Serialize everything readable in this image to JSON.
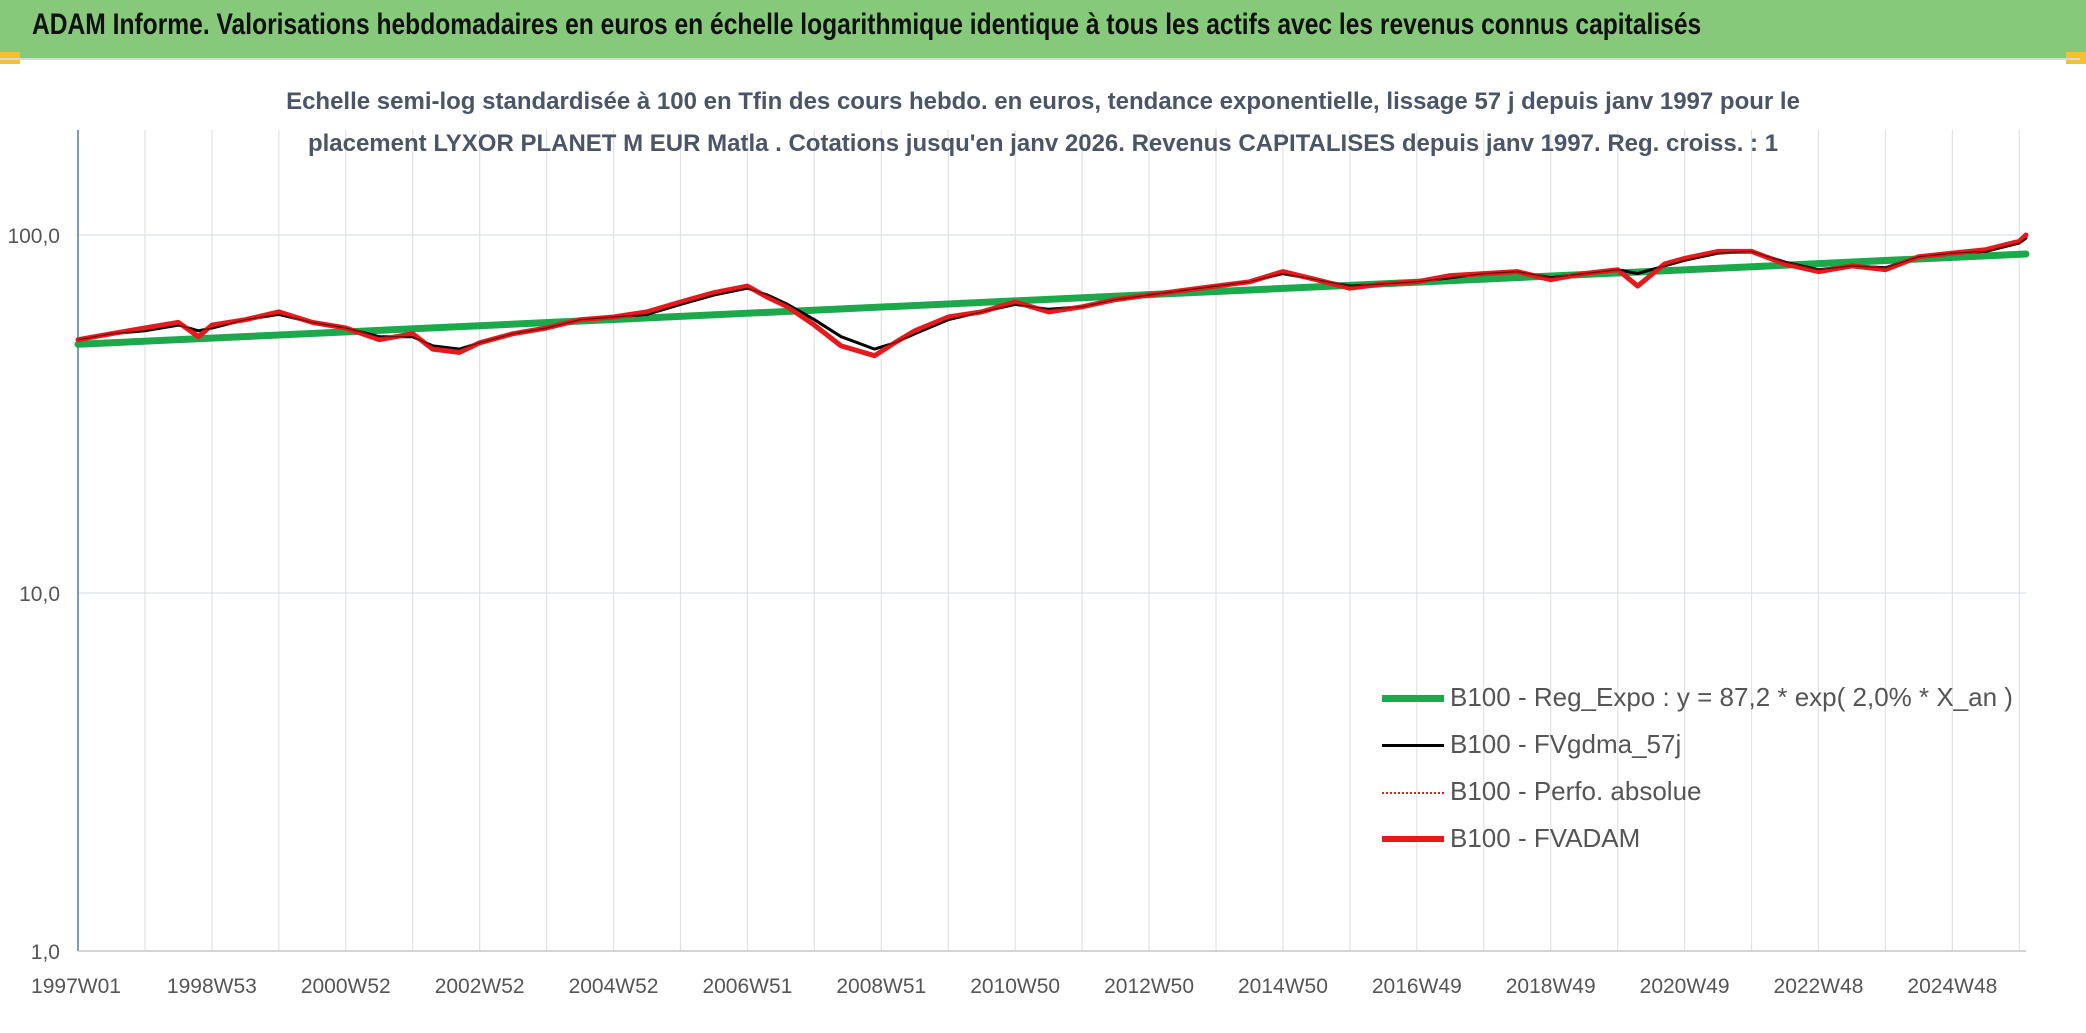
{
  "header": {
    "title": "ADAM Informe. Valorisations hebdomadaires en euros en échelle logarithmique identique à tous les actifs avec les revenus connus capitalisés"
  },
  "colors": {
    "header_bg": "#87C97A",
    "trend": "#1BA94C",
    "smoothed": "#000000",
    "absolute": "#E41A1C",
    "fvadam": "#E41A1C"
  },
  "chart_data": {
    "type": "line",
    "title_line1": "Echelle semi-log standardisée à 100 en Tfin des cours hebdo. en euros, tendance exponentielle, lissage 57 j depuis janv 1997 pour le",
    "title_line2": "placement LYXOR PLANET M EUR Matla . Cotations jusqu'en janv 2026. Revenus CAPITALISES depuis janv 1997. Reg. croiss. : 1",
    "y_scale": "log",
    "ylim": [
      1,
      200
    ],
    "y_ticks": [
      {
        "value": 1,
        "label": "1,0"
      },
      {
        "value": 10,
        "label": "10,0"
      },
      {
        "value": 100,
        "label": "100,0"
      }
    ],
    "xlim": [
      1997.0,
      2026.1
    ],
    "x_ticks": [
      {
        "x": 1997.0,
        "label": "1997W01"
      },
      {
        "x": 1999.0,
        "label": "1998W53"
      },
      {
        "x": 2001.0,
        "label": "2000W52"
      },
      {
        "x": 2003.0,
        "label": "2002W52"
      },
      {
        "x": 2005.0,
        "label": "2004W52"
      },
      {
        "x": 2007.0,
        "label": "2006W51"
      },
      {
        "x": 2009.0,
        "label": "2008W51"
      },
      {
        "x": 2011.0,
        "label": "2010W50"
      },
      {
        "x": 2013.0,
        "label": "2012W50"
      },
      {
        "x": 2015.0,
        "label": "2014W50"
      },
      {
        "x": 2017.0,
        "label": "2016W49"
      },
      {
        "x": 2019.0,
        "label": "2018W49"
      },
      {
        "x": 2021.0,
        "label": "2020W49"
      },
      {
        "x": 2023.0,
        "label": "2022W48"
      },
      {
        "x": 2025.0,
        "label": "2024W48"
      }
    ],
    "grid": {
      "vertical": true,
      "horizontal": true,
      "minor_vertical": true
    },
    "legend": {
      "position": "bottom-right"
    },
    "series": [
      {
        "name": "B100 - Reg_Expo : y = 87,2 * exp( 2,0% *  X_an )",
        "style": "solid-thick",
        "x": [
          1997.0,
          2026.1
        ],
        "y": [
          49.5,
          88.5
        ]
      },
      {
        "name": "B100 - FVgdma_57j",
        "style": "solid-thin",
        "x": [
          1997.0,
          1997.5,
          1998.0,
          1998.5,
          1998.8,
          1999.0,
          1999.5,
          2000.0,
          2000.5,
          2001.0,
          2001.5,
          2002.0,
          2002.3,
          2002.7,
          2003.0,
          2003.5,
          2004.0,
          2004.5,
          2005.0,
          2005.5,
          2006.0,
          2006.5,
          2007.0,
          2007.3,
          2007.6,
          2008.0,
          2008.4,
          2008.9,
          2009.2,
          2009.5,
          2010.0,
          2010.5,
          2011.0,
          2011.5,
          2012.0,
          2012.5,
          2013.0,
          2013.5,
          2014.0,
          2014.5,
          2015.0,
          2015.5,
          2016.0,
          2016.5,
          2017.0,
          2017.5,
          2018.0,
          2018.5,
          2019.0,
          2019.5,
          2020.0,
          2020.3,
          2020.7,
          2021.0,
          2021.5,
          2022.0,
          2022.5,
          2023.0,
          2023.5,
          2024.0,
          2024.5,
          2025.0,
          2025.5,
          2026.0,
          2026.1
        ],
        "y": [
          51,
          53,
          54,
          56,
          54,
          55,
          58,
          60,
          57,
          55,
          52,
          52,
          49,
          48,
          50,
          53,
          55,
          58,
          59,
          60,
          64,
          68,
          71,
          68,
          64,
          58,
          52,
          48,
          50,
          53,
          58,
          61,
          64,
          62,
          63,
          66,
          68,
          70,
          72,
          74,
          78,
          75,
          72,
          73,
          74,
          76,
          78,
          79,
          76,
          78,
          80,
          78,
          82,
          85,
          89,
          90,
          84,
          80,
          82,
          81,
          87,
          89,
          90,
          95,
          98
        ]
      },
      {
        "name": "B100 - Perfo. absolue",
        "style": "dotted",
        "x": [
          1997.0,
          1997.5,
          1998.0,
          1998.5,
          1998.8,
          1999.0,
          1999.5,
          2000.0,
          2000.5,
          2001.0,
          2001.5,
          2002.0,
          2002.3,
          2002.7,
          2003.0,
          2003.5,
          2004.0,
          2004.5,
          2005.0,
          2005.5,
          2006.0,
          2006.5,
          2007.0,
          2007.3,
          2007.6,
          2008.0,
          2008.4,
          2008.9,
          2009.2,
          2009.5,
          2010.0,
          2010.5,
          2011.0,
          2011.5,
          2012.0,
          2012.5,
          2013.0,
          2013.5,
          2014.0,
          2014.5,
          2015.0,
          2015.5,
          2016.0,
          2016.5,
          2017.0,
          2017.5,
          2018.0,
          2018.5,
          2019.0,
          2019.5,
          2020.0,
          2020.3,
          2020.7,
          2021.0,
          2021.5,
          2022.0,
          2022.5,
          2023.0,
          2023.5,
          2024.0,
          2024.5,
          2025.0,
          2025.5,
          2026.0,
          2026.1
        ],
        "y": [
          51,
          53,
          55,
          57,
          52,
          56,
          58,
          61,
          57,
          55,
          51,
          53,
          48,
          47,
          50,
          53,
          55,
          58,
          59,
          61,
          65,
          69,
          72,
          67,
          63,
          56,
          49,
          46,
          50,
          54,
          59,
          61,
          65,
          61,
          63,
          66,
          68,
          70,
          72,
          74,
          79,
          75,
          71,
          73,
          74,
          77,
          78,
          79,
          75,
          78,
          80,
          72,
          83,
          86,
          90,
          90,
          83,
          79,
          82,
          80,
          87,
          89,
          91,
          96,
          100
        ]
      },
      {
        "name": "B100 - FVADAM",
        "style": "solid-thick",
        "x": [
          1997.0,
          1997.5,
          1998.0,
          1998.5,
          1998.8,
          1999.0,
          1999.5,
          2000.0,
          2000.5,
          2001.0,
          2001.5,
          2002.0,
          2002.3,
          2002.7,
          2003.0,
          2003.5,
          2004.0,
          2004.5,
          2005.0,
          2005.5,
          2006.0,
          2006.5,
          2007.0,
          2007.3,
          2007.6,
          2008.0,
          2008.4,
          2008.9,
          2009.2,
          2009.5,
          2010.0,
          2010.5,
          2011.0,
          2011.5,
          2012.0,
          2012.5,
          2013.0,
          2013.5,
          2014.0,
          2014.5,
          2015.0,
          2015.5,
          2016.0,
          2016.5,
          2017.0,
          2017.5,
          2018.0,
          2018.5,
          2019.0,
          2019.5,
          2020.0,
          2020.3,
          2020.7,
          2021.0,
          2021.5,
          2022.0,
          2022.5,
          2023.0,
          2023.5,
          2024.0,
          2024.5,
          2025.0,
          2025.5,
          2026.0,
          2026.1
        ],
        "y": [
          51,
          53,
          55,
          57,
          52,
          56,
          58,
          61,
          57,
          55,
          51,
          53,
          48,
          47,
          50,
          53,
          55,
          58,
          59,
          61,
          65,
          69,
          72,
          67,
          63,
          56,
          49,
          46,
          50,
          54,
          59,
          61,
          65,
          61,
          63,
          66,
          68,
          70,
          72,
          74,
          79,
          75,
          71,
          73,
          74,
          77,
          78,
          79,
          75,
          78,
          80,
          72,
          83,
          86,
          90,
          90,
          83,
          79,
          82,
          80,
          87,
          89,
          91,
          96,
          100
        ]
      }
    ]
  }
}
